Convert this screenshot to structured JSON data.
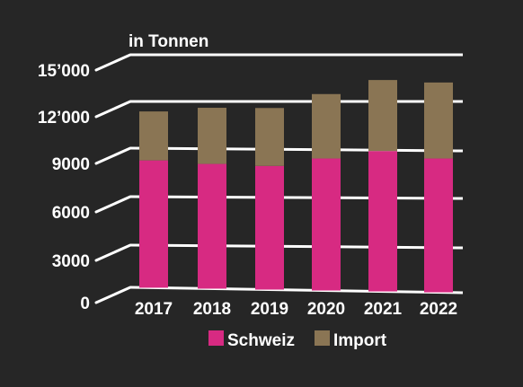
{
  "chart_data": {
    "type": "bar",
    "stacked": true,
    "unit_label": "in Tonnen",
    "categories": [
      "2017",
      "2018",
      "2019",
      "2020",
      "2021",
      "2022"
    ],
    "series": [
      {
        "name": "Schweiz",
        "color": "#d72a82",
        "values": [
          8200,
          8000,
          7900,
          8400,
          8900,
          8450
        ]
      },
      {
        "name": "Import",
        "color": "#8a7554",
        "values": [
          3150,
          3600,
          3700,
          4100,
          4500,
          4800
        ]
      }
    ],
    "y_ticks": [
      "0",
      "3000",
      "6000",
      "9000",
      "12’000",
      "15’000"
    ],
    "y_tick_values": [
      0,
      3000,
      6000,
      9000,
      12000,
      15000
    ],
    "ylim": [
      0,
      15000
    ],
    "grid": true,
    "legend_position": "bottom"
  }
}
